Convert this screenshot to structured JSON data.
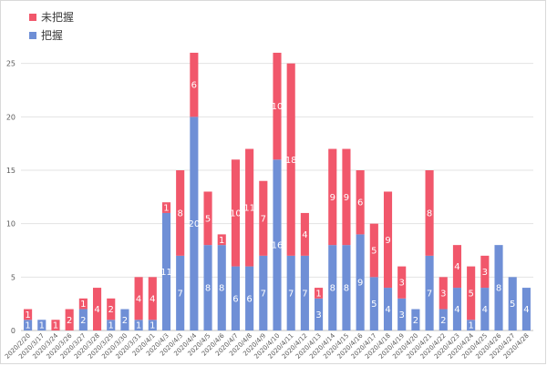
{
  "chart_data": {
    "type": "bar",
    "stacked": true,
    "title": "",
    "xlabel": "",
    "ylabel": "",
    "ylim": [
      0,
      30
    ],
    "yticks": [
      0,
      5,
      10,
      15,
      20,
      25
    ],
    "grid": true,
    "legend_position": "top-left",
    "categories": [
      "2020/2/20",
      "2020/3/17",
      "2020/3/24",
      "2020/3/26",
      "2020/3/27",
      "2020/3/28",
      "2020/3/29",
      "2020/3/30",
      "2020/3/31",
      "2020/4/1",
      "2020/4/3",
      "2020/4/3",
      "2020/4/4",
      "2020/4/5",
      "2020/4/6",
      "2020/4/7",
      "2020/4/8",
      "2020/4/9",
      "2020/4/10",
      "2020/4/11",
      "2020/4/12",
      "2020/4/13",
      "2020/4/14",
      "2020/4/15",
      "2020/4/16",
      "2020/4/17",
      "2020/4/18",
      "2020/4/19",
      "2020/4/20",
      "2020/4/21",
      "2020/4/22",
      "2020/4/23",
      "2020/4/24",
      "2020/4/25",
      "2020/4/26",
      "2020/4/27",
      "2020/4/28"
    ],
    "series": [
      {
        "name": "把握",
        "color": "#6f8fd6",
        "values": [
          1,
          1,
          0,
          0,
          2,
          0,
          1,
          2,
          1,
          1,
          11,
          7,
          20,
          8,
          8,
          6,
          6,
          7,
          16,
          7,
          7,
          3,
          8,
          8,
          9,
          5,
          4,
          3,
          2,
          7,
          2,
          4,
          1,
          4,
          8,
          5,
          4
        ]
      },
      {
        "name": "未把握",
        "color": "#f1576b",
        "values": [
          1,
          0,
          1,
          2,
          1,
          4,
          2,
          0,
          4,
          4,
          1,
          8,
          6,
          5,
          1,
          10,
          11,
          7,
          10,
          18,
          4,
          1,
          9,
          9,
          6,
          5,
          9,
          3,
          0,
          8,
          3,
          4,
          5,
          3,
          0,
          0,
          0
        ]
      }
    ],
    "legend_order": [
      "未把握",
      "把握"
    ]
  }
}
